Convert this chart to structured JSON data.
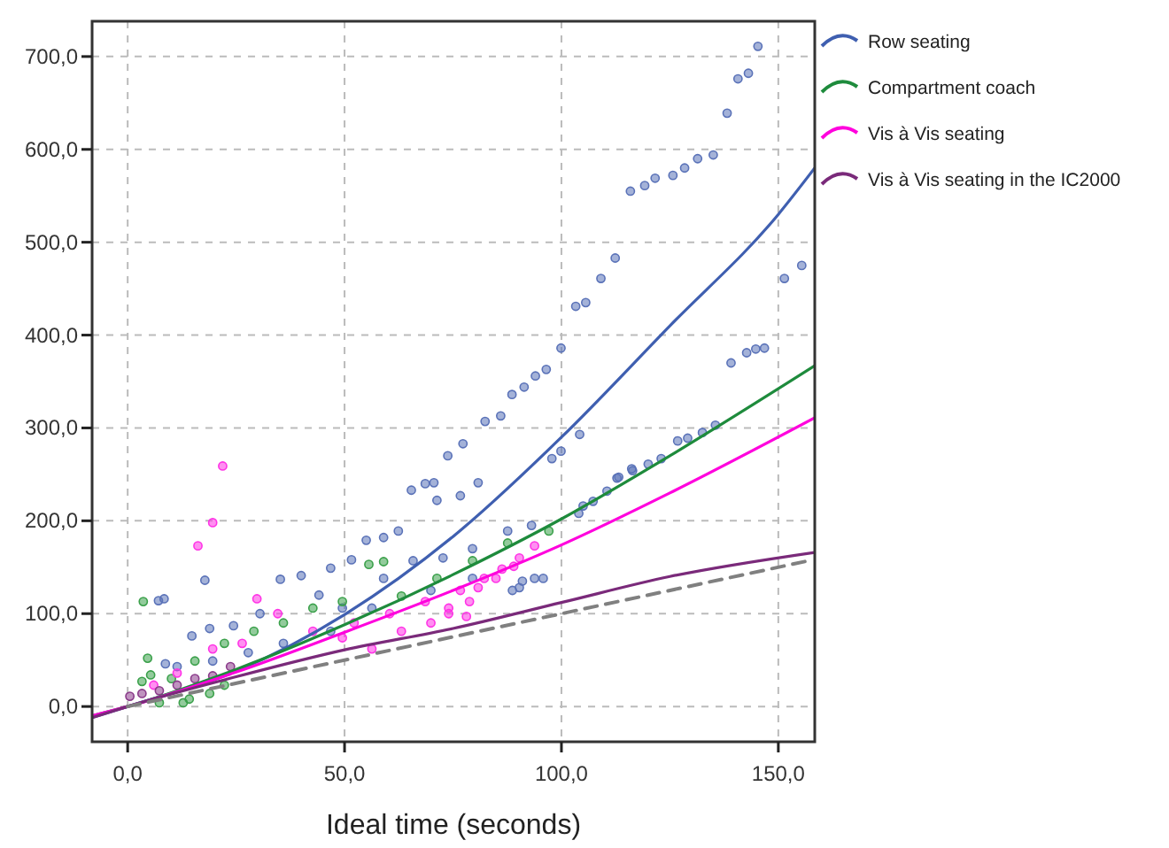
{
  "chart_data": {
    "type": "scatter",
    "xlabel": "Ideal time (seconds)",
    "xlim": [
      -8.2,
      158.4
    ],
    "ylim": [
      -38,
      738
    ],
    "xticks": [
      {
        "value": 0,
        "label": "0,0"
      },
      {
        "value": 50,
        "label": "50,0"
      },
      {
        "value": 100,
        "label": "100,0"
      },
      {
        "value": 150,
        "label": "150,0"
      }
    ],
    "yticks": [
      {
        "value": 0,
        "label": "0,0"
      },
      {
        "value": 100,
        "label": "100,0"
      },
      {
        "value": 200,
        "label": "200,0"
      },
      {
        "value": 300,
        "label": "300,0"
      },
      {
        "value": 400,
        "label": "400,0"
      },
      {
        "value": 500,
        "label": "500,0"
      },
      {
        "value": 600,
        "label": "600,0"
      },
      {
        "value": 700,
        "label": "700,0"
      }
    ],
    "grid": true,
    "legend": "top right",
    "marker": "circle",
    "series": [
      {
        "color": "#5a72b8",
        "x": [
          145.3,
          143.1,
          140.7,
          138.2,
          135,
          131.4,
          128.4,
          125.7,
          121.6,
          119.2,
          115.9,
          112.4,
          109.1,
          105.6,
          103.3,
          99.9,
          96.5,
          94,
          91.4,
          88.6,
          104.2,
          155.4,
          151.4,
          146.8,
          144.8,
          142.7,
          139.1,
          135.5,
          132.5,
          129.1,
          126.8,
          123,
          120,
          116.4,
          113.2,
          110.5,
          107.3,
          105,
          99.9,
          97.8,
          93.8,
          91,
          88.7,
          82.4,
          86,
          77.3,
          73.8,
          65.4,
          68.6,
          70.6,
          71.3,
          76.7,
          80.8,
          55,
          59,
          62.4,
          51.6,
          46.8,
          40,
          35.2,
          8.4,
          7.1,
          17.8,
          14.8,
          18.9,
          24.4,
          30.5,
          44.1,
          49.5,
          59,
          65.8,
          72.7,
          79.5,
          87.6,
          93.1,
          90.3,
          95.8,
          11.4,
          8.7,
          19.6,
          27.8,
          35.9,
          46.8,
          56.3,
          69.9,
          79.5,
          104,
          112.8,
          116.2
        ],
        "values": [
          711,
          682,
          676,
          639,
          594,
          590,
          580,
          572,
          569,
          561,
          555,
          483,
          461,
          435,
          431,
          386,
          363,
          356,
          344,
          336,
          293,
          475,
          461,
          386,
          385,
          381,
          370,
          303,
          295,
          289,
          286,
          267,
          261,
          254,
          247,
          232,
          221,
          216,
          275,
          267,
          138,
          135,
          125,
          307,
          313,
          283,
          270,
          233,
          240,
          241,
          222,
          227,
          241,
          179,
          182,
          189,
          158,
          149,
          141,
          137,
          116,
          114,
          136,
          76,
          84,
          87,
          100,
          120,
          106,
          138,
          157,
          160,
          170,
          189,
          195,
          128,
          138,
          43,
          46,
          49,
          58,
          68,
          81,
          106,
          125,
          138,
          208,
          246,
          256
        ]
      },
      {
        "color": "#3aa04a",
        "x": [
          3.6,
          4.6,
          59,
          55.6,
          7.3,
          12.8,
          18.9,
          22.3,
          15.5,
          22.3,
          29.1,
          35.9,
          42.7,
          49.5,
          63.1,
          71.3,
          79.5,
          87.6,
          97.1,
          3.3,
          10.1,
          5.3,
          14.2
        ],
        "values": [
          113,
          52,
          156,
          153,
          4,
          4,
          14,
          23,
          49,
          68,
          81,
          90,
          106,
          113,
          119,
          138,
          157,
          176,
          189,
          27,
          30,
          34,
          8
        ]
      },
      {
        "color": "#ff33e6",
        "x": [
          21.9,
          19.6,
          16.2,
          29.8,
          34.6,
          26.4,
          19.6,
          11.4,
          6,
          42.7,
          49.5,
          52.2,
          60.4,
          63.1,
          68.6,
          74,
          76.7,
          80.8,
          84.9,
          89,
          56.3,
          69.9,
          78.1,
          93.8,
          90.3,
          86.3,
          82.2,
          78.8,
          74
        ],
        "values": [
          259,
          198,
          173,
          116,
          100,
          68,
          62,
          36,
          23,
          81,
          74,
          90,
          100,
          81,
          113,
          106,
          125,
          128,
          138,
          151,
          62,
          90,
          97,
          173,
          160,
          148,
          138,
          113,
          100
        ]
      },
      {
        "color": "#8a3a8a",
        "x": [
          0.5,
          3.3,
          7.3,
          11.4,
          15.5,
          19.6,
          23.7
        ],
        "values": [
          11,
          14,
          17,
          23,
          30,
          33,
          43
        ]
      },
      {
        "type": "line",
        "name": "Row seating",
        "marker": "none",
        "color": "#3f5fb0",
        "x": [
          -8.2,
          0,
          25,
          50,
          75,
          100,
          125,
          150,
          158.4
        ],
        "values": [
          -12,
          0,
          38,
          99,
          183,
          290,
          410,
          530,
          580
        ]
      },
      {
        "type": "line",
        "name": "Compartment coach",
        "marker": "none",
        "color": "#1e8b3c",
        "x": [
          -8.2,
          0,
          25,
          50,
          75,
          100,
          125,
          158.4
        ],
        "values": [
          -10,
          0,
          40,
          88,
          142,
          202,
          270,
          367
        ]
      },
      {
        "type": "line",
        "name": "Vis à Vis seating",
        "marker": "none",
        "color": "#ff00dd",
        "x": [
          -8.2,
          0,
          25,
          50,
          75,
          100,
          125,
          158.4
        ],
        "values": [
          -10,
          0,
          37,
          80,
          125,
          174,
          230,
          311
        ]
      },
      {
        "type": "line",
        "name": "Vis à Vis seating in the IC2000",
        "marker": "none",
        "color": "#7a2a7a",
        "x": [
          -8.2,
          0,
          25,
          50,
          75,
          100,
          125,
          158.4
        ],
        "values": [
          -12,
          0,
          32,
          61,
          84,
          112,
          140,
          166
        ]
      },
      {
        "type": "line",
        "marker": "none",
        "color": "#808080",
        "line_style": "dashed",
        "x": [
          0,
          158
        ],
        "values": [
          0,
          158
        ]
      }
    ]
  }
}
